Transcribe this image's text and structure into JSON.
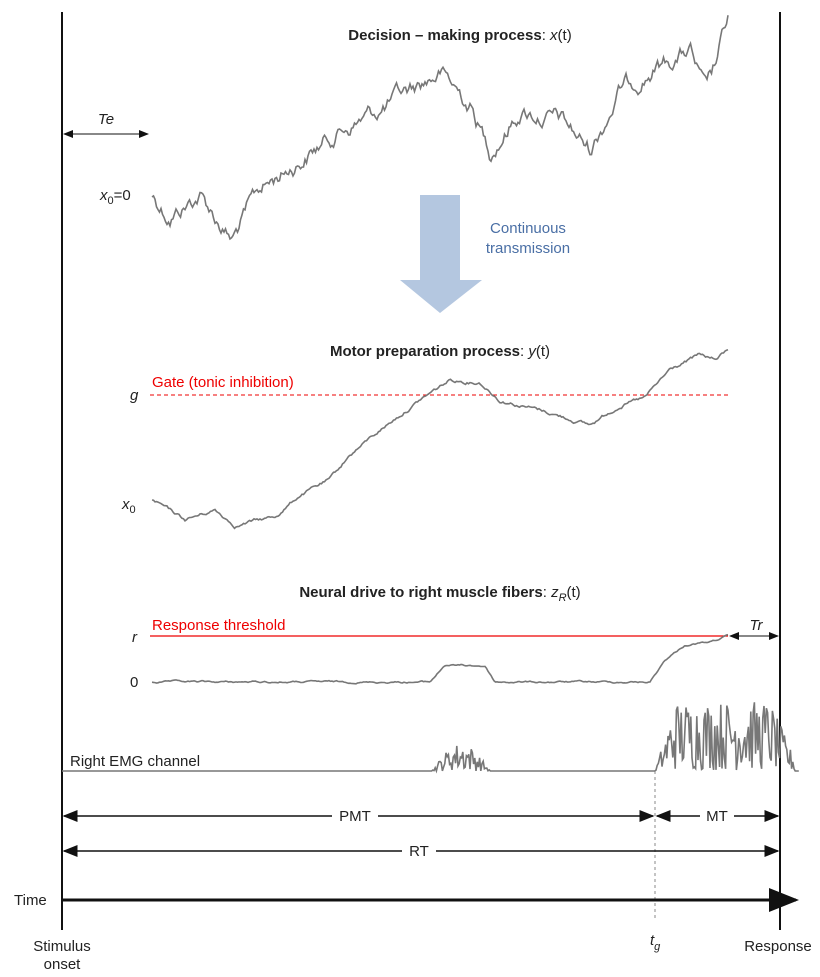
{
  "decision": {
    "title": "Decision – making process",
    "sep": ":",
    "var": "x",
    "arg": "(t)",
    "te": "Te",
    "start": {
      "var": "x",
      "sub": "0",
      "rest": "=0"
    }
  },
  "transmission": {
    "line1": "Continuous",
    "line2": "transmission"
  },
  "motor": {
    "title": "Motor preparation process",
    "sep": ":",
    "var": "y",
    "arg": "(t)",
    "gate": "Gate (tonic inhibition)",
    "g": "g",
    "start": {
      "var": "x",
      "sub": "0"
    }
  },
  "neural": {
    "title": "Neural drive to right muscle fibers",
    "sep": ":",
    "var": "z",
    "sub": "R",
    "arg": "(t)",
    "threshold": "Response threshold",
    "r": "r",
    "zero": "0",
    "tr": "Tr"
  },
  "emg": {
    "label": "Right EMG channel"
  },
  "intervals": {
    "pmt": "PMT",
    "mt": "MT",
    "rt": "RT"
  },
  "time": {
    "label": "Time",
    "stimulus": [
      "Stimulus",
      "onset"
    ],
    "tg": {
      "var": "t",
      "sub": "g"
    },
    "response": "Response"
  }
}
